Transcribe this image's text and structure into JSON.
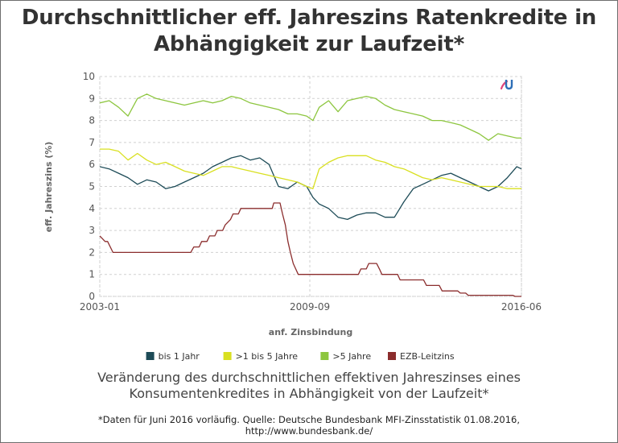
{
  "title_line1": "Durchschnittlicher eff. Jahreszins Ratenkredite in",
  "title_line2": "Abhängigkeit zur Laufzeit*",
  "caption_line1": "Veränderung des durchschnittlichen effektiven Jahreszinses eines",
  "caption_line2": "Konsumentenkredites in Abhängigkeit von der Laufzeit*",
  "source_line1": "*Daten für Juni 2016 vorläufig. Quelle: Deutsche Bundesbank MFI-Zinsstatistik 01.08.2016,",
  "source_line2": "http://www.bundesbank.de/",
  "chart_data": {
    "type": "line",
    "xlabel": "anf. Zinsbindung",
    "ylabel": "eff. Jahreszins (%)",
    "ylim": [
      0,
      10
    ],
    "yticks": [
      "0",
      "1",
      "2",
      "3",
      "4",
      "5",
      "6",
      "7",
      "8",
      "9",
      "10"
    ],
    "xlim": [
      2003.0,
      2016.45
    ],
    "xticks": [
      {
        "x": 2003.0,
        "label": "2003-01"
      },
      {
        "x": 2009.7,
        "label": "2009-09"
      },
      {
        "x": 2016.45,
        "label": "2016-06"
      }
    ],
    "grid": true,
    "legend_position": "bottom",
    "series": [
      {
        "name": "bis 1 Jahr",
        "color": "#1d4b57",
        "x": [
          2003.0,
          2003.3,
          2003.6,
          2003.9,
          2004.2,
          2004.5,
          2004.8,
          2005.1,
          2005.4,
          2005.7,
          2006.0,
          2006.3,
          2006.6,
          2006.9,
          2007.2,
          2007.5,
          2007.8,
          2008.1,
          2008.4,
          2008.7,
          2009.0,
          2009.3,
          2009.6,
          2009.8,
          2010.0,
          2010.3,
          2010.6,
          2010.9,
          2011.2,
          2011.5,
          2011.8,
          2012.1,
          2012.4,
          2012.7,
          2013.0,
          2013.3,
          2013.6,
          2013.9,
          2014.2,
          2014.5,
          2014.8,
          2015.1,
          2015.4,
          2015.7,
          2016.0,
          2016.3,
          2016.45
        ],
        "values": [
          5.9,
          5.8,
          5.6,
          5.4,
          5.1,
          5.3,
          5.2,
          4.9,
          5.0,
          5.2,
          5.4,
          5.6,
          5.9,
          6.1,
          6.3,
          6.4,
          6.2,
          6.3,
          6.0,
          5.0,
          4.9,
          5.2,
          5.0,
          4.5,
          4.2,
          4.0,
          3.6,
          3.5,
          3.7,
          3.8,
          3.8,
          3.6,
          3.6,
          4.3,
          4.9,
          5.1,
          5.3,
          5.5,
          5.6,
          5.4,
          5.2,
          5.0,
          4.8,
          5.0,
          5.4,
          5.9,
          5.8
        ]
      },
      {
        "name": ">1 bis 5 Jahre",
        "color": "#d9e021",
        "x": [
          2003.0,
          2003.3,
          2003.6,
          2003.9,
          2004.2,
          2004.5,
          2004.8,
          2005.1,
          2005.4,
          2005.7,
          2006.0,
          2006.3,
          2006.6,
          2006.9,
          2007.2,
          2007.5,
          2007.8,
          2008.1,
          2008.4,
          2008.7,
          2009.0,
          2009.3,
          2009.6,
          2009.8,
          2010.0,
          2010.3,
          2010.6,
          2010.9,
          2011.2,
          2011.5,
          2011.8,
          2012.1,
          2012.4,
          2012.7,
          2013.0,
          2013.3,
          2013.6,
          2013.9,
          2014.2,
          2014.5,
          2014.8,
          2015.1,
          2015.4,
          2015.7,
          2016.0,
          2016.3,
          2016.45
        ],
        "values": [
          6.7,
          6.7,
          6.6,
          6.2,
          6.5,
          6.2,
          6.0,
          6.1,
          5.9,
          5.7,
          5.6,
          5.5,
          5.7,
          5.9,
          5.9,
          5.8,
          5.7,
          5.6,
          5.5,
          5.4,
          5.3,
          5.2,
          5.0,
          4.9,
          5.8,
          6.1,
          6.3,
          6.4,
          6.4,
          6.4,
          6.2,
          6.1,
          5.9,
          5.8,
          5.6,
          5.4,
          5.3,
          5.4,
          5.3,
          5.2,
          5.1,
          5.0,
          5.0,
          5.0,
          4.9,
          4.9,
          4.9
        ]
      },
      {
        "name": ">5 Jahre",
        "color": "#8dc63f",
        "x": [
          2003.0,
          2003.3,
          2003.6,
          2003.9,
          2004.2,
          2004.5,
          2004.8,
          2005.1,
          2005.4,
          2005.7,
          2006.0,
          2006.3,
          2006.6,
          2006.9,
          2007.2,
          2007.5,
          2007.8,
          2008.1,
          2008.4,
          2008.7,
          2009.0,
          2009.3,
          2009.6,
          2009.8,
          2010.0,
          2010.3,
          2010.6,
          2010.9,
          2011.2,
          2011.5,
          2011.8,
          2012.1,
          2012.4,
          2012.7,
          2013.0,
          2013.3,
          2013.6,
          2013.9,
          2014.2,
          2014.5,
          2014.8,
          2015.1,
          2015.4,
          2015.7,
          2016.0,
          2016.3,
          2016.45
        ],
        "values": [
          8.8,
          8.9,
          8.6,
          8.2,
          9.0,
          9.2,
          9.0,
          8.9,
          8.8,
          8.7,
          8.8,
          8.9,
          8.8,
          8.9,
          9.1,
          9.0,
          8.8,
          8.7,
          8.6,
          8.5,
          8.3,
          8.3,
          8.2,
          8.0,
          8.6,
          8.9,
          8.4,
          8.9,
          9.0,
          9.1,
          9.0,
          8.7,
          8.5,
          8.4,
          8.3,
          8.2,
          8.0,
          8.0,
          7.9,
          7.8,
          7.6,
          7.4,
          7.1,
          7.4,
          7.3,
          7.2,
          7.2
        ]
      },
      {
        "name": "EZB-Leitzins",
        "color": "#8b2d2d",
        "x": [
          2003.0,
          2003.17,
          2003.25,
          2003.42,
          2003.5,
          2005.9,
          2006.0,
          2006.17,
          2006.25,
          2006.42,
          2006.5,
          2006.67,
          2006.75,
          2006.92,
          2007.0,
          2007.17,
          2007.25,
          2007.42,
          2007.5,
          2008.5,
          2008.55,
          2008.75,
          2008.83,
          2008.92,
          2009.0,
          2009.08,
          2009.17,
          2009.25,
          2009.33,
          2009.42,
          2011.25,
          2011.33,
          2011.5,
          2011.58,
          2011.83,
          2011.92,
          2012.0,
          2012.5,
          2012.58,
          2013.33,
          2013.42,
          2013.83,
          2013.92,
          2014.42,
          2014.5,
          2014.67,
          2014.75,
          2016.17,
          2016.25,
          2016.45
        ],
        "values": [
          2.75,
          2.5,
          2.5,
          2.0,
          2.0,
          2.0,
          2.25,
          2.25,
          2.5,
          2.5,
          2.75,
          2.75,
          3.0,
          3.0,
          3.25,
          3.5,
          3.75,
          3.75,
          4.0,
          4.0,
          4.25,
          4.25,
          3.75,
          3.25,
          2.5,
          2.0,
          1.5,
          1.25,
          1.0,
          1.0,
          1.0,
          1.25,
          1.25,
          1.5,
          1.5,
          1.25,
          1.0,
          1.0,
          0.75,
          0.75,
          0.5,
          0.5,
          0.25,
          0.25,
          0.15,
          0.15,
          0.05,
          0.05,
          0.0,
          0.0
        ]
      }
    ]
  }
}
